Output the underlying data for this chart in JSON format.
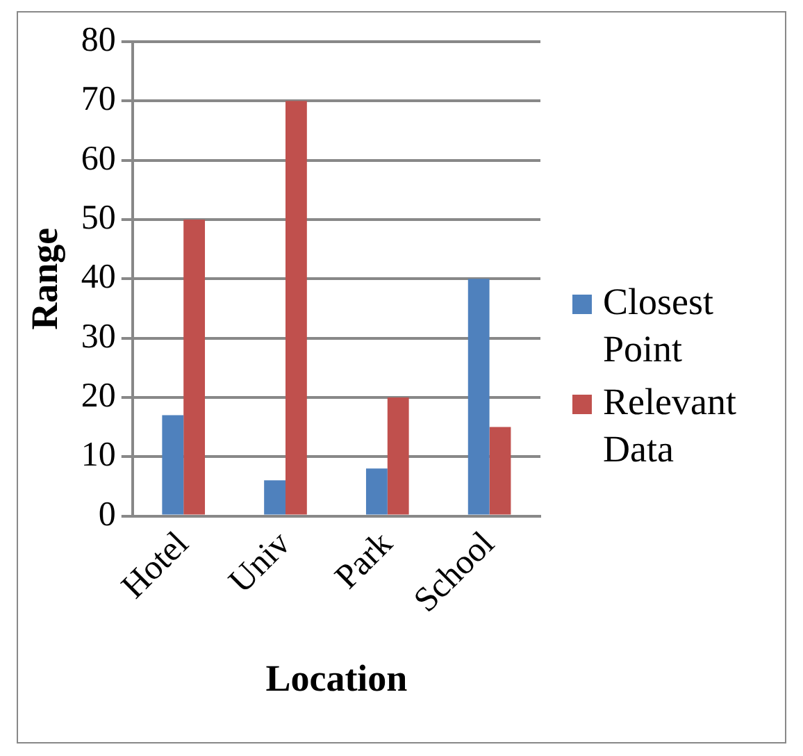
{
  "chart_data": {
    "type": "bar",
    "xlabel": "Location",
    "ylabel": "Range",
    "categories": [
      "Hotel",
      "Univ",
      "Park",
      "School"
    ],
    "series": [
      {
        "name": "Closest Point",
        "color": "#4f81bd",
        "values": [
          17,
          6,
          8,
          40
        ]
      },
      {
        "name": "Relevant Data",
        "color": "#c0504d",
        "values": [
          50,
          70,
          20,
          15
        ]
      }
    ],
    "ylim": [
      0,
      80
    ],
    "yticks": [
      0,
      10,
      20,
      30,
      40,
      50,
      60,
      70,
      80
    ],
    "grid": "y",
    "legend": "right"
  }
}
